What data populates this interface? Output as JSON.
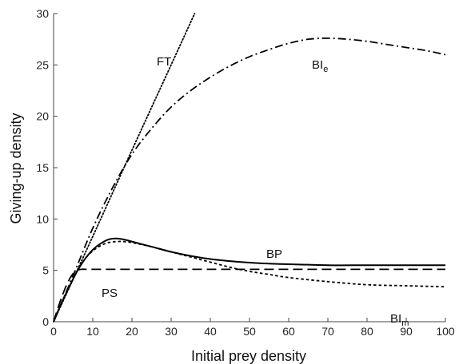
{
  "chart_data": {
    "type": "line",
    "xlabel": "Initial prey density",
    "ylabel": "Giving-up density",
    "xlim": [
      0,
      100
    ],
    "ylim": [
      0,
      30
    ],
    "xticks": [
      "0",
      "10",
      "20",
      "30",
      "40",
      "50",
      "60",
      "70",
      "80",
      "90",
      "100"
    ],
    "yticks": [
      "0",
      "5",
      "10",
      "15",
      "20",
      "25",
      "30"
    ],
    "grid": false,
    "legend": "none",
    "color": "#000000",
    "series": [
      {
        "key": "ft",
        "name": "FT",
        "style": "dotted",
        "x": [
          0,
          10,
          20,
          30,
          36
        ],
        "y": [
          0,
          8.3,
          16.7,
          25.0,
          30.0
        ]
      },
      {
        "key": "bie",
        "name": "BI",
        "name_sub": "e",
        "style": "dashdot",
        "x": [
          0,
          5,
          10,
          15,
          20,
          25,
          30,
          35,
          40,
          45,
          50,
          55,
          60,
          65,
          70,
          75,
          80,
          85,
          90,
          95,
          100
        ],
        "y": [
          0,
          4.5,
          9.1,
          13.0,
          16.3,
          18.8,
          20.9,
          22.5,
          23.8,
          24.9,
          25.8,
          26.5,
          27.1,
          27.5,
          27.6,
          27.5,
          27.3,
          27.0,
          26.7,
          26.4,
          26.0
        ]
      },
      {
        "key": "bp",
        "name": "BP",
        "style": "solid",
        "x": [
          0,
          2,
          4,
          6,
          8,
          10,
          12,
          14,
          16,
          18,
          20,
          25,
          30,
          35,
          40,
          45,
          50,
          55,
          60,
          70,
          80,
          90,
          100
        ],
        "y": [
          0,
          1.8,
          3.4,
          4.9,
          6.1,
          7.0,
          7.6,
          8.0,
          8.1,
          8.0,
          7.8,
          7.3,
          6.8,
          6.4,
          6.1,
          5.9,
          5.75,
          5.65,
          5.6,
          5.5,
          5.5,
          5.5,
          5.5
        ]
      },
      {
        "key": "bim",
        "name": "BI",
        "name_sub": "m",
        "style": "dotted-short",
        "x": [
          0,
          2,
          4,
          6,
          8,
          10,
          12,
          14,
          16,
          18,
          20,
          25,
          30,
          35,
          40,
          45,
          50,
          55,
          60,
          70,
          80,
          90,
          100
        ],
        "y": [
          0,
          1.8,
          3.4,
          4.9,
          6.1,
          6.9,
          7.4,
          7.7,
          7.8,
          7.8,
          7.7,
          7.3,
          6.8,
          6.3,
          5.8,
          5.3,
          4.9,
          4.6,
          4.3,
          3.9,
          3.6,
          3.5,
          3.4
        ]
      },
      {
        "key": "ps",
        "name": "PS",
        "style": "dashed",
        "x": [
          0,
          1,
          2,
          3,
          4,
          5,
          6,
          7,
          8,
          10,
          20,
          40,
          60,
          80,
          100
        ],
        "y": [
          0,
          1.2,
          2.3,
          3.3,
          4.1,
          4.7,
          5.0,
          5.1,
          5.1,
          5.1,
          5.1,
          5.1,
          5.1,
          5.1,
          5.1
        ]
      }
    ]
  }
}
